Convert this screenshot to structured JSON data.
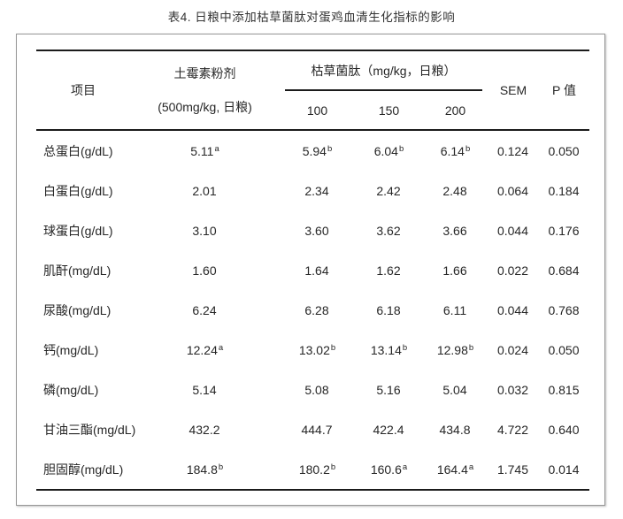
{
  "title": "表4.  日粮中添加枯草菌肽对蛋鸡血清生化指标的影响",
  "table": {
    "columns": {
      "item": "项目",
      "control_name": "土霉素粉剂",
      "control_dose": "(500mg/kg, 日粮)",
      "treatment_name": "枯草菌肽（mg/kg，日粮）",
      "treatment_doses": [
        "100",
        "150",
        "200"
      ],
      "sem": "SEM",
      "p_value": "P 值"
    },
    "rows": [
      {
        "label": "总蛋白(g/dL)",
        "values": [
          {
            "v": "5.11",
            "sup": "a"
          },
          {
            "v": "5.94",
            "sup": "b"
          },
          {
            "v": "6.04",
            "sup": "b"
          },
          {
            "v": "6.14",
            "sup": "b"
          },
          {
            "v": "0.124",
            "sup": ""
          },
          {
            "v": "0.050",
            "sup": ""
          }
        ]
      },
      {
        "label": "白蛋白(g/dL)",
        "values": [
          {
            "v": "2.01",
            "sup": ""
          },
          {
            "v": "2.34",
            "sup": ""
          },
          {
            "v": "2.42",
            "sup": ""
          },
          {
            "v": "2.48",
            "sup": ""
          },
          {
            "v": "0.064",
            "sup": ""
          },
          {
            "v": "0.184",
            "sup": ""
          }
        ]
      },
      {
        "label": "球蛋白(g/dL)",
        "values": [
          {
            "v": "3.10",
            "sup": ""
          },
          {
            "v": "3.60",
            "sup": ""
          },
          {
            "v": "3.62",
            "sup": ""
          },
          {
            "v": "3.66",
            "sup": ""
          },
          {
            "v": "0.044",
            "sup": ""
          },
          {
            "v": "0.176",
            "sup": ""
          }
        ]
      },
      {
        "label": "肌酐(mg/dL)",
        "values": [
          {
            "v": "1.60",
            "sup": ""
          },
          {
            "v": "1.64",
            "sup": ""
          },
          {
            "v": "1.62",
            "sup": ""
          },
          {
            "v": "1.66",
            "sup": ""
          },
          {
            "v": "0.022",
            "sup": ""
          },
          {
            "v": "0.684",
            "sup": ""
          }
        ]
      },
      {
        "label": "尿酸(mg/dL)",
        "values": [
          {
            "v": "6.24",
            "sup": ""
          },
          {
            "v": "6.28",
            "sup": ""
          },
          {
            "v": "6.18",
            "sup": ""
          },
          {
            "v": "6.11",
            "sup": ""
          },
          {
            "v": "0.044",
            "sup": ""
          },
          {
            "v": "0.768",
            "sup": ""
          }
        ]
      },
      {
        "label": "钙(mg/dL)",
        "values": [
          {
            "v": "12.24",
            "sup": "a"
          },
          {
            "v": "13.02",
            "sup": "b"
          },
          {
            "v": "13.14",
            "sup": "b"
          },
          {
            "v": "12.98",
            "sup": "b"
          },
          {
            "v": "0.024",
            "sup": ""
          },
          {
            "v": "0.050",
            "sup": ""
          }
        ]
      },
      {
        "label": "磷(mg/dL)",
        "values": [
          {
            "v": "5.14",
            "sup": ""
          },
          {
            "v": "5.08",
            "sup": ""
          },
          {
            "v": "5.16",
            "sup": ""
          },
          {
            "v": "5.04",
            "sup": ""
          },
          {
            "v": "0.032",
            "sup": ""
          },
          {
            "v": "0.815",
            "sup": ""
          }
        ]
      },
      {
        "label": "甘油三酯(mg/dL)",
        "values": [
          {
            "v": "432.2",
            "sup": ""
          },
          {
            "v": "444.7",
            "sup": ""
          },
          {
            "v": "422.4",
            "sup": ""
          },
          {
            "v": "434.8",
            "sup": ""
          },
          {
            "v": "4.722",
            "sup": ""
          },
          {
            "v": "0.640",
            "sup": ""
          }
        ]
      },
      {
        "label": "胆固醇(mg/dL)",
        "values": [
          {
            "v": "184.8",
            "sup": "b"
          },
          {
            "v": "180.2",
            "sup": "b"
          },
          {
            "v": "160.6",
            "sup": "a"
          },
          {
            "v": "164.4",
            "sup": "a"
          },
          {
            "v": "1.745",
            "sup": ""
          },
          {
            "v": "0.014",
            "sup": ""
          }
        ]
      }
    ]
  },
  "colors": {
    "rule": "#1b1b1b",
    "panel_border": "#979797",
    "text": "#262626"
  }
}
